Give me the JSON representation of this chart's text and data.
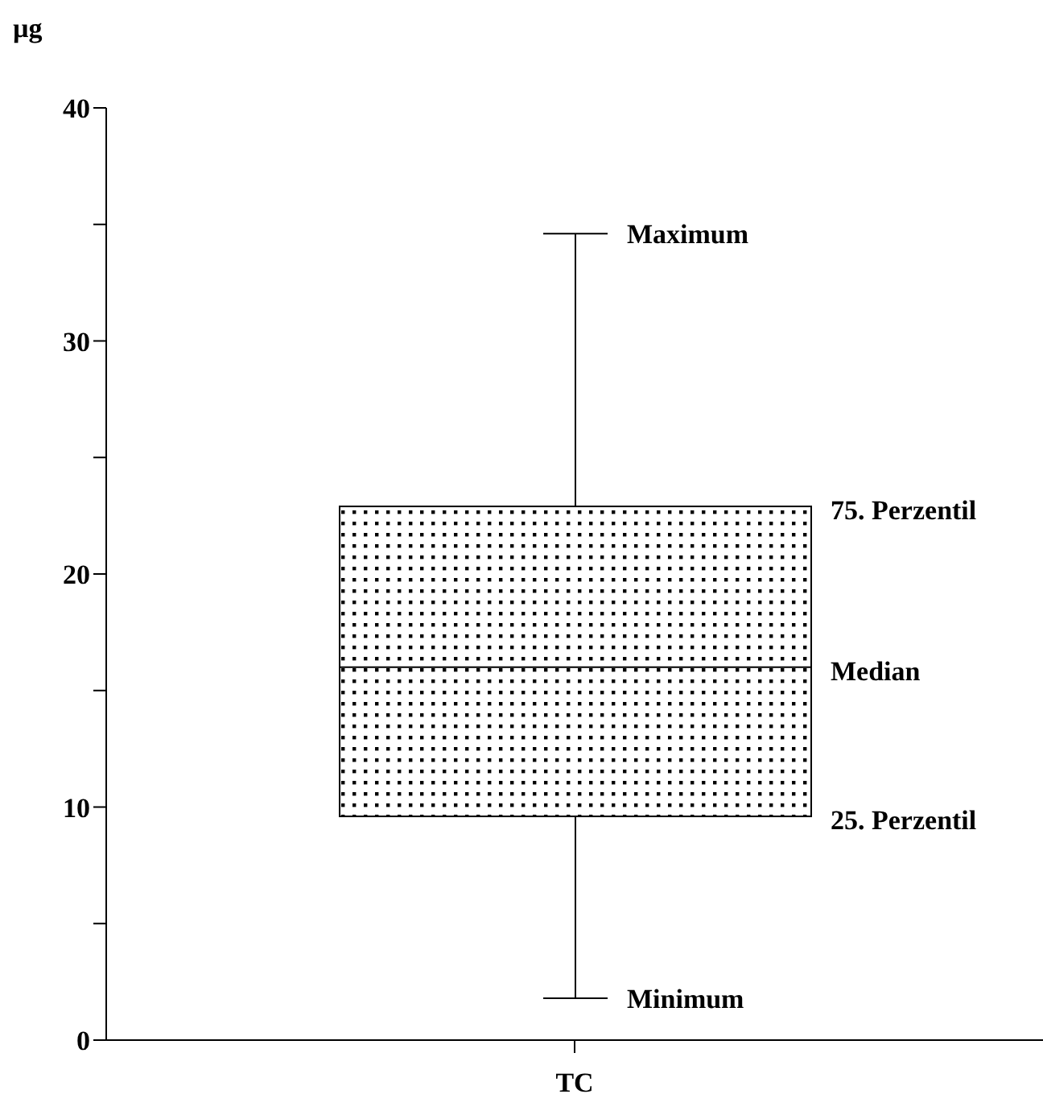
{
  "chart_data": {
    "type": "box",
    "ylabel": "µg",
    "categories": [
      "TC"
    ],
    "boxes": [
      {
        "low": 1.8,
        "q1": 9.6,
        "median": 16.0,
        "q3": 22.9,
        "high": 34.6
      }
    ],
    "ylim": [
      0,
      40
    ],
    "yticks": [
      0,
      {
        "value": 5,
        "label": null
      },
      10,
      {
        "value": 15,
        "label": null
      },
      20,
      {
        "value": 25,
        "label": null
      },
      30,
      {
        "value": 35,
        "label": null
      },
      40
    ],
    "grid": false,
    "legend": false,
    "annotations": [
      {
        "text": "Maximum",
        "x": "TC",
        "y": 34.6
      },
      "75. Perzentil",
      "Median",
      "25. Perzentil",
      {
        "text": "Minimum",
        "x": "TC",
        "y": 1.8
      }
    ]
  }
}
